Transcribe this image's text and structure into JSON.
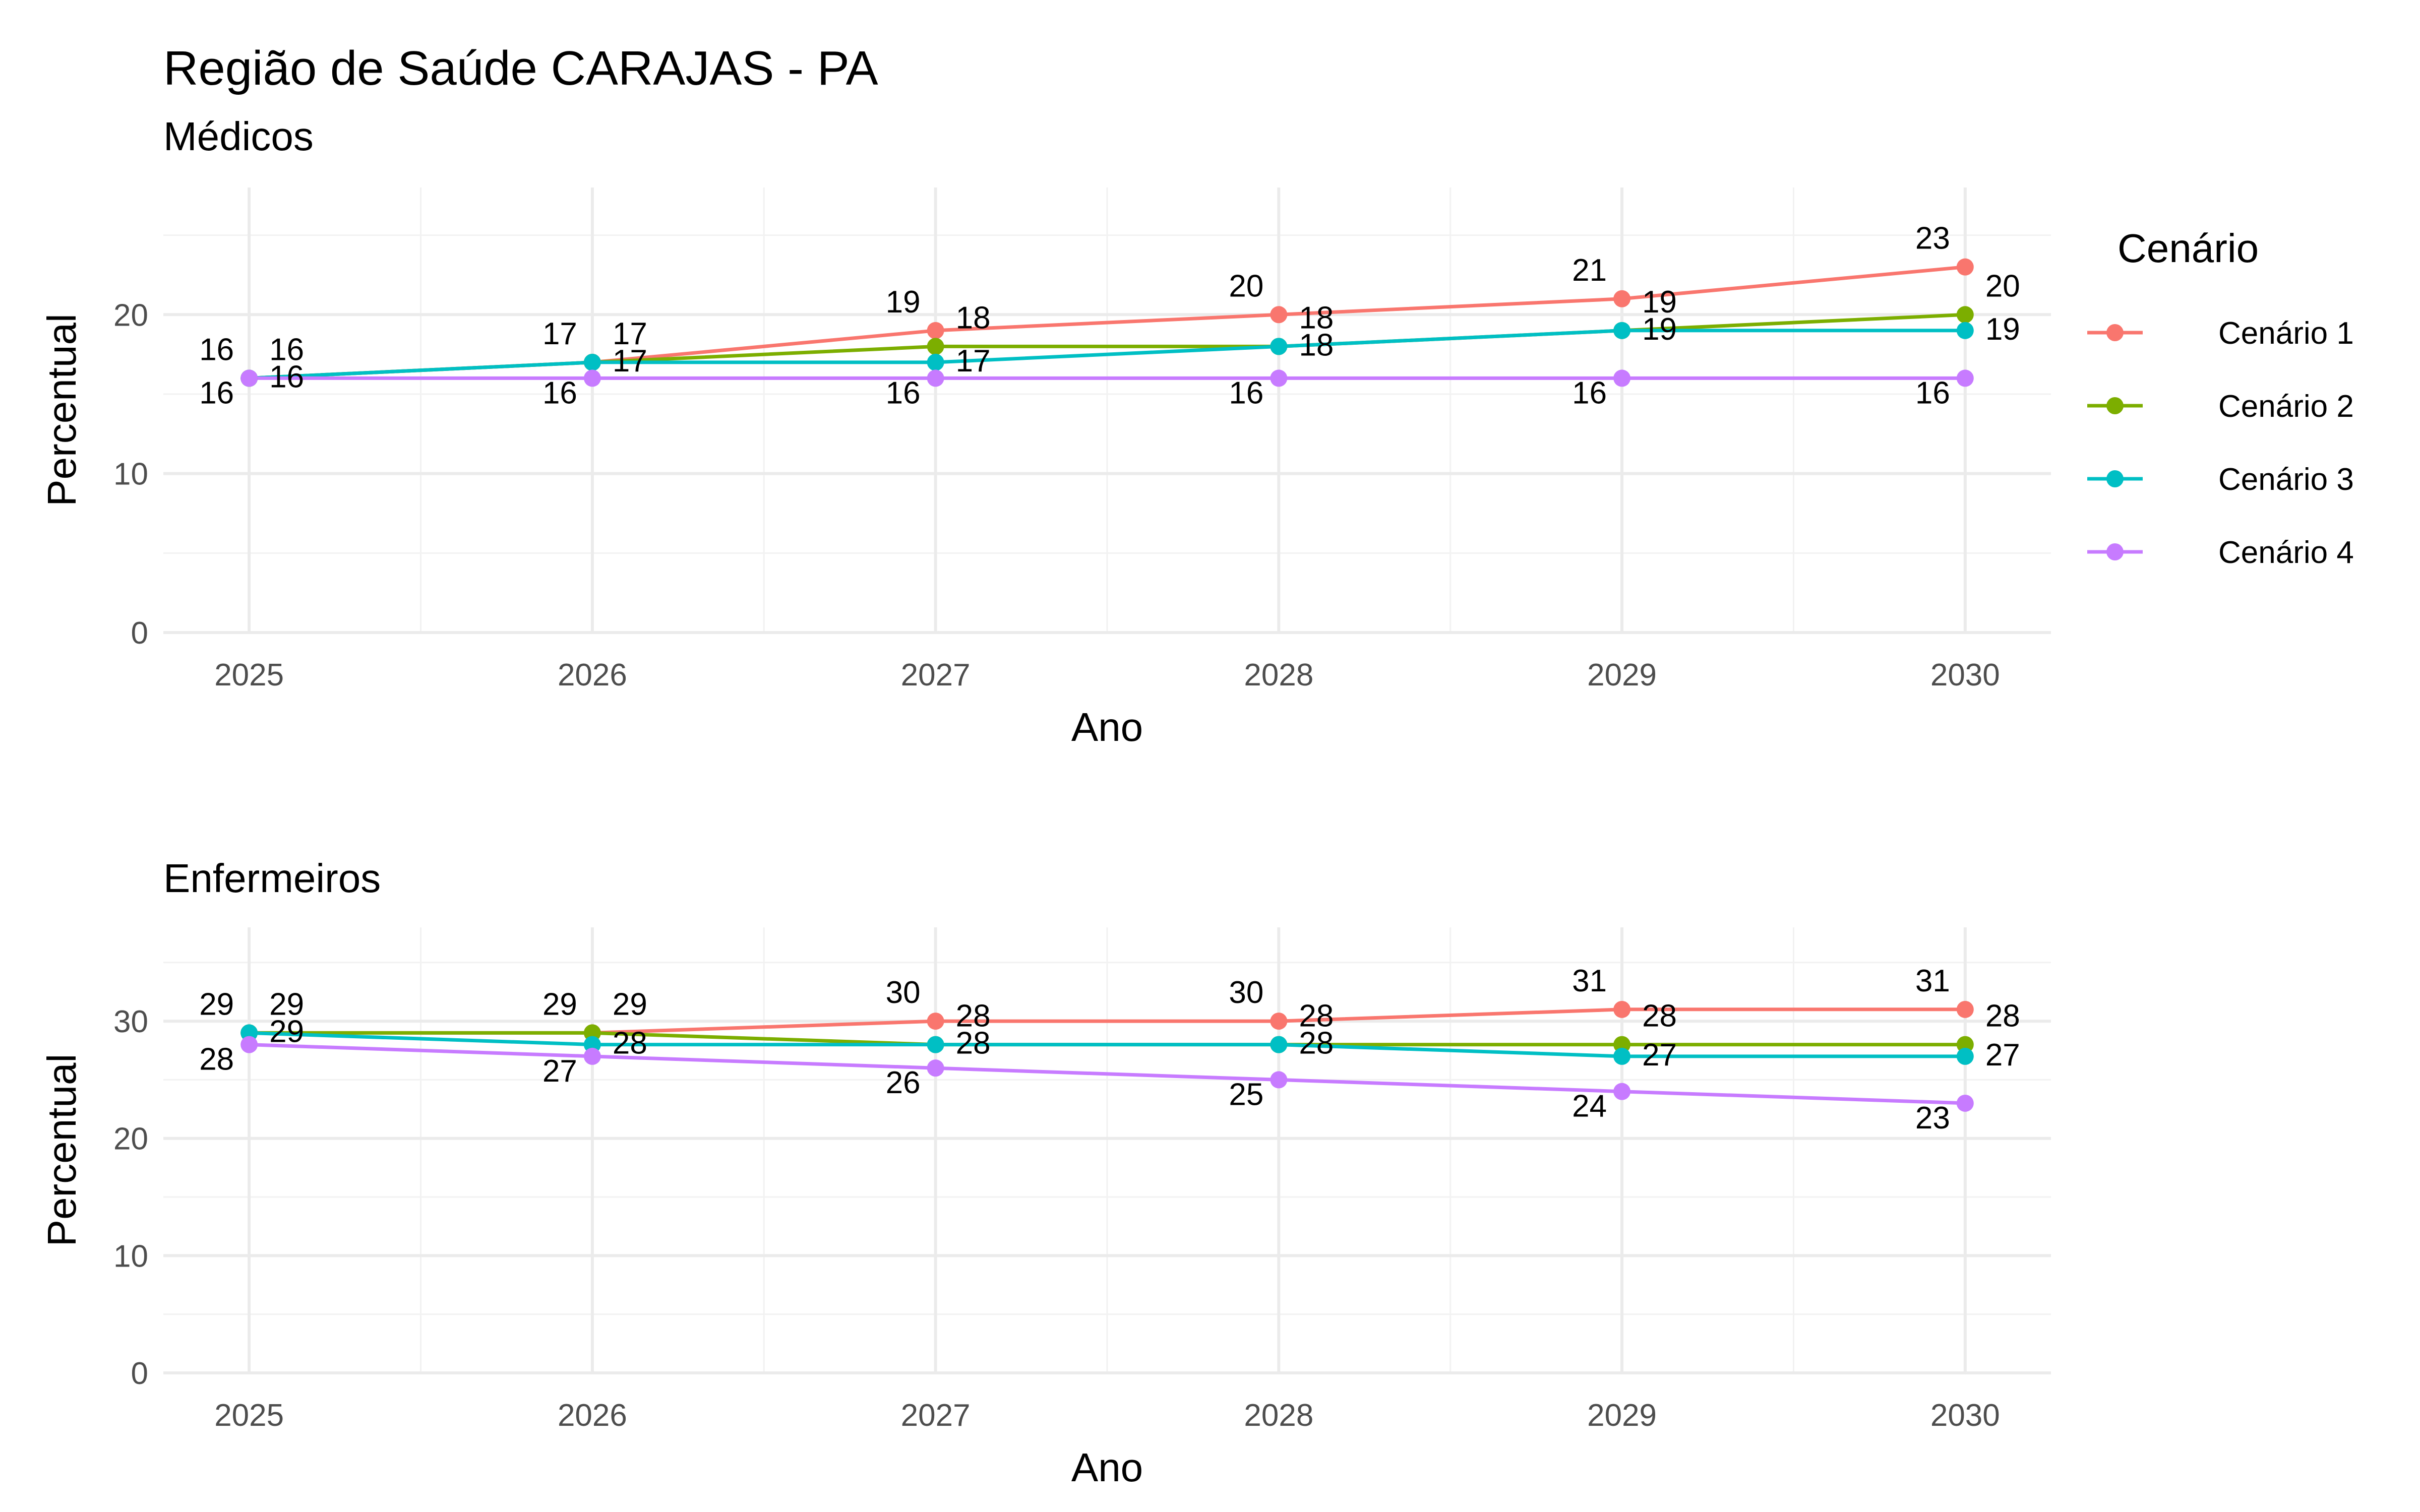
{
  "title": "Região de Saúde CARAJAS - PA",
  "legend": {
    "title": "Cenário",
    "position": "right",
    "items": [
      "Cenário 1",
      "Cenário 2",
      "Cenário 3",
      "Cenário 4"
    ]
  },
  "colors": {
    "Cenário 1": "#F8766D",
    "Cenário 2": "#7CAE00",
    "Cenário 3": "#00BFC4",
    "Cenário 4": "#C77CFF",
    "grid": "#EBEBEB",
    "tick_text": "#4D4D4D"
  },
  "chart_data": [
    {
      "type": "line",
      "subtitle": "Médicos",
      "xlabel": "Ano",
      "ylabel": "Percentual",
      "x": [
        2025,
        2026,
        2027,
        2028,
        2029,
        2030
      ],
      "xlim": [
        2024.75,
        2030.25
      ],
      "ylim": [
        0,
        28
      ],
      "yticks": [
        0,
        10,
        20
      ],
      "grid": true,
      "series": [
        {
          "name": "Cenário 1",
          "values": [
            16,
            17,
            19,
            20,
            21,
            23
          ]
        },
        {
          "name": "Cenário 2",
          "values": [
            16,
            17,
            18,
            18,
            19,
            20
          ]
        },
        {
          "name": "Cenário 3",
          "values": [
            16,
            17,
            17,
            18,
            19,
            19
          ]
        },
        {
          "name": "Cenário 4",
          "values": [
            16,
            16,
            16,
            16,
            16,
            16
          ]
        }
      ]
    },
    {
      "type": "line",
      "subtitle": "Enfermeiros",
      "xlabel": "Ano",
      "ylabel": "Percentual",
      "x": [
        2025,
        2026,
        2027,
        2028,
        2029,
        2030
      ],
      "xlim": [
        2024.75,
        2030.25
      ],
      "ylim": [
        0,
        38
      ],
      "yticks": [
        0,
        10,
        20,
        30
      ],
      "grid": true,
      "series": [
        {
          "name": "Cenário 1",
          "values": [
            29,
            29,
            30,
            30,
            31,
            31
          ]
        },
        {
          "name": "Cenário 2",
          "values": [
            29,
            29,
            28,
            28,
            28,
            28
          ]
        },
        {
          "name": "Cenário 3",
          "values": [
            29,
            28,
            28,
            28,
            27,
            27
          ]
        },
        {
          "name": "Cenário 4",
          "values": [
            28,
            27,
            26,
            25,
            24,
            23
          ]
        }
      ]
    }
  ]
}
